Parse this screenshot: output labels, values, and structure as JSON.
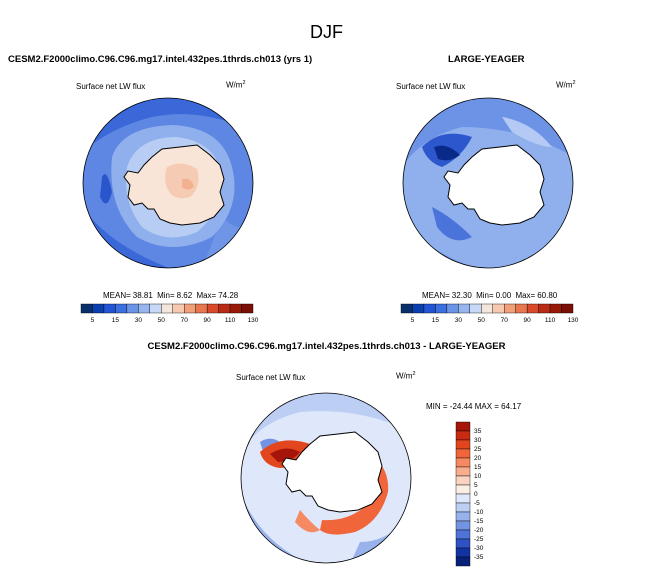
{
  "figure": {
    "title": "DJF"
  },
  "panels": [
    {
      "title": "CESM2.F2000climo.C96.C96.mg17.intel.432pes.1thrds.ch013 (yrs 1)",
      "variable": "Surface net LW flux",
      "units": "W/m",
      "units_sup": "2",
      "stats": {
        "mean_label": "MEAN=",
        "mean": "38.81",
        "min_label": "Min=",
        "min": "8.62",
        "max_label": "Max=",
        "max": "74.28"
      }
    },
    {
      "title": "LARGE-YEAGER",
      "variable": "Surface net LW flux",
      "units": "W/m",
      "units_sup": "2",
      "stats": {
        "mean_label": "MEAN=",
        "mean": "32.30",
        "min_label": "Min=",
        "min": "0.00",
        "max_label": "Max=",
        "max": "60.80"
      }
    },
    {
      "title": "CESM2.F2000climo.C96.C96.mg17.intel.432pes.1thrds.ch013 - LARGE-YEAGER",
      "variable": "Surface net LW flux",
      "units": "W/m",
      "units_sup": "2",
      "minmax": "MIN = -24.44 MAX = 64.17"
    }
  ],
  "colorbars": {
    "field": {
      "ticks": [
        "5",
        "15",
        "30",
        "50",
        "70",
        "90",
        "110",
        "130"
      ],
      "colors": [
        "#08306b",
        "#0a3fb0",
        "#2155d6",
        "#3c6fe0",
        "#6c94e6",
        "#98b6ee",
        "#c6d8f5",
        "#f5e6dc",
        "#f7c8b0",
        "#f2a07c",
        "#e8764e",
        "#d84a2a",
        "#bb2a14",
        "#9a1a0a",
        "#7a0f05"
      ]
    },
    "difference": {
      "ticks": [
        "35",
        "30",
        "25",
        "20",
        "15",
        "10",
        "5",
        "0",
        "-5",
        "-10",
        "-15",
        "-20",
        "-25",
        "-30",
        "-35"
      ],
      "colors": [
        "#a5150a",
        "#c92a12",
        "#e2461f",
        "#f0653a",
        "#f58a62",
        "#f8ae8e",
        "#fbd3c1",
        "#fbeee6",
        "#dfe8fa",
        "#bccef4",
        "#98b2ec",
        "#7394e3",
        "#4f73d8",
        "#2e52c4",
        "#1433a3",
        "#082078"
      ]
    }
  }
}
